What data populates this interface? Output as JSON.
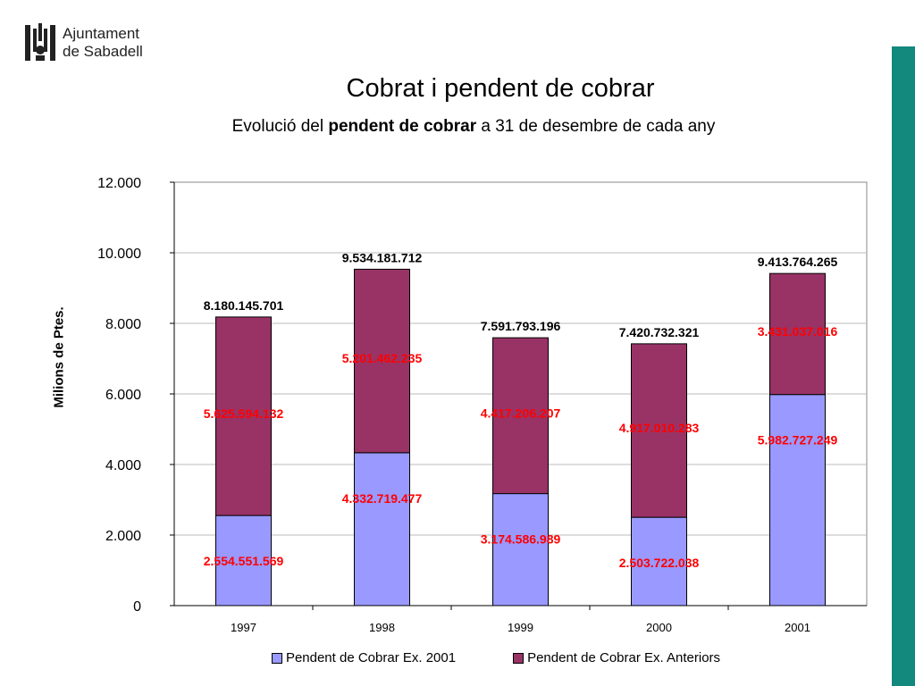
{
  "header": {
    "logo_line1": "Ajuntament",
    "logo_line2": "de Sabadell",
    "title": "Cobrat i pendent de cobrar",
    "subtitle_pre": "Evolució del ",
    "subtitle_bold": "pendent de cobrar",
    "subtitle_post": " a 31 de desembre de cada any"
  },
  "colors": {
    "series_current": "#9999ff",
    "series_previous": "#993366",
    "label_red": "#ff0000",
    "accent_bar": "#13887c"
  },
  "chart_data": {
    "type": "bar",
    "stacked": true,
    "ylabel": "Milions de Ptes.",
    "ylim": [
      0,
      12000
    ],
    "yticks": [
      "0",
      "2.000",
      "4.000",
      "6.000",
      "8.000",
      "10.000",
      "12.000"
    ],
    "grid": true,
    "legend_position": "bottom",
    "categories": [
      "1997",
      "1998",
      "1999",
      "2000",
      "2001"
    ],
    "series": [
      {
        "name": "Pendent de Cobrar Ex. 2001",
        "values": [
          2554.551569,
          4332.719477,
          3174.586989,
          2503.722038,
          5982.727249
        ],
        "labels": [
          "2.554.551.569",
          "4.332.719.477",
          "3.174.586.989",
          "2.503.722.038",
          "5.982.727.249"
        ]
      },
      {
        "name": "Pendent de Cobrar Ex. Anteriors",
        "values": [
          5625.594132,
          5201.462235,
          4417.206207,
          4917.010283,
          3431.037016
        ],
        "labels": [
          "5.625.594.132",
          "5.201.462.235",
          "4.417.206.207",
          "4.917.010.283",
          "3.431.037.016"
        ]
      }
    ],
    "totals": [
      "8.180.145.701",
      "9.534.181.712",
      "7.591.793.196",
      "7.420.732.321",
      "9.413.764.265"
    ]
  }
}
